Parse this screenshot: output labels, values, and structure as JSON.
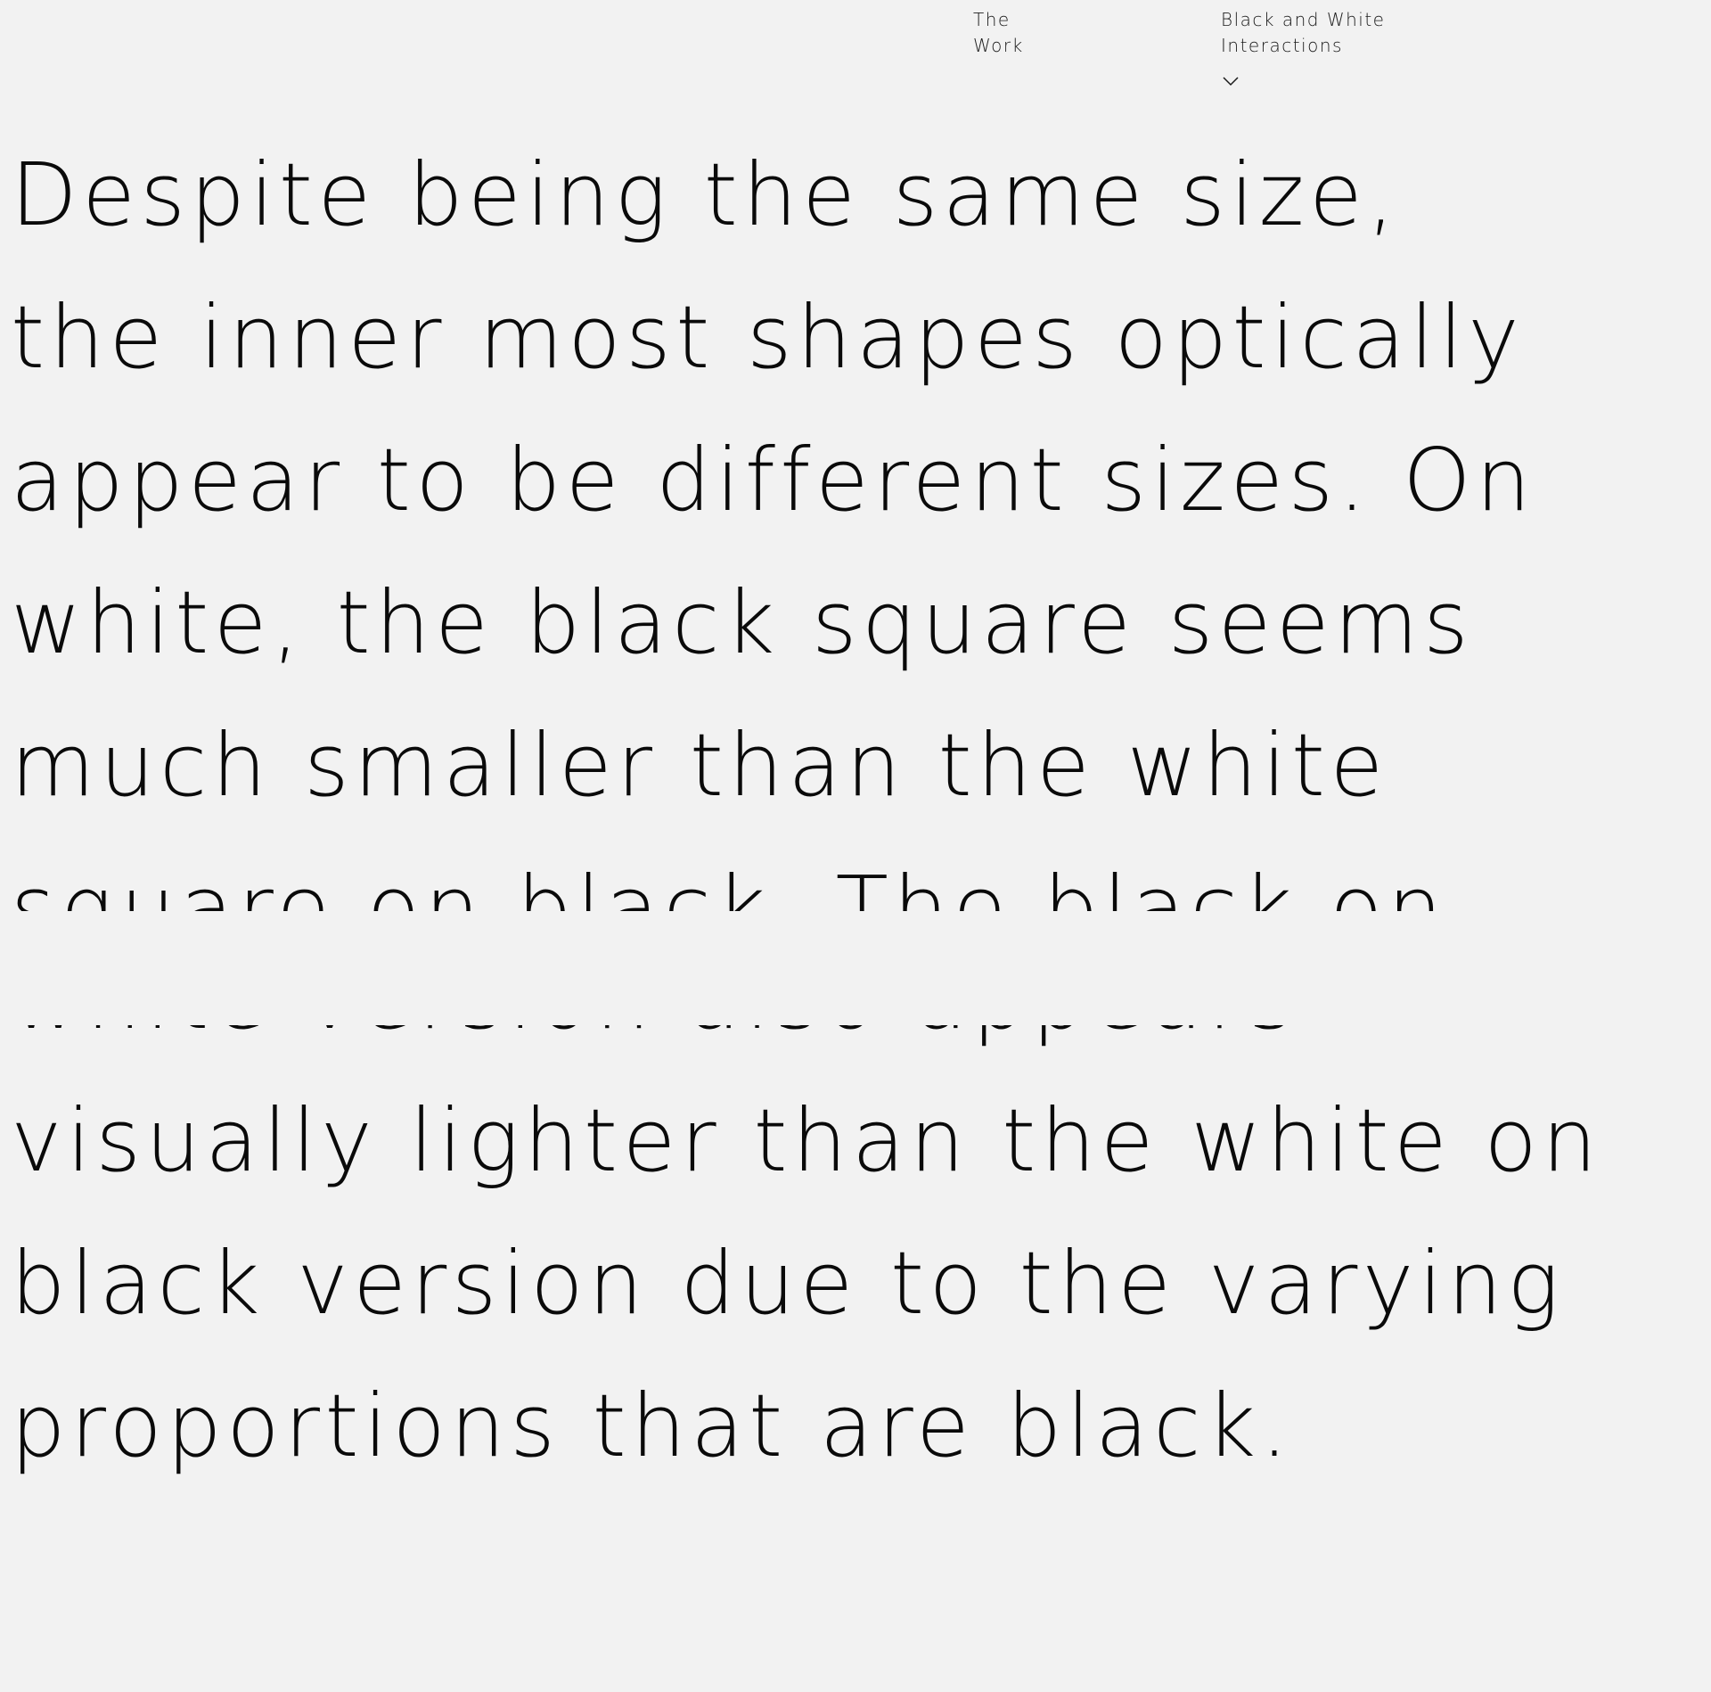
{
  "nav": {
    "the_work": [
      "The",
      "Work"
    ],
    "section": [
      "Black and White",
      "Interactions"
    ],
    "dropdown_icon": "chevron-down-icon"
  },
  "text": {
    "lines": [
      "Despite being the same size,",
      "the inner most shapes optically",
      "appear to be different sizes. On",
      "white, the black square seems",
      "much smaller than the white",
      "square on black. The black on",
      "white version also appears",
      "visually lighter than the white on",
      "black version due to the varying",
      "proportions that are black."
    ]
  },
  "colors": {
    "background": "#f2f2f2",
    "text": "#0a0a0a"
  }
}
